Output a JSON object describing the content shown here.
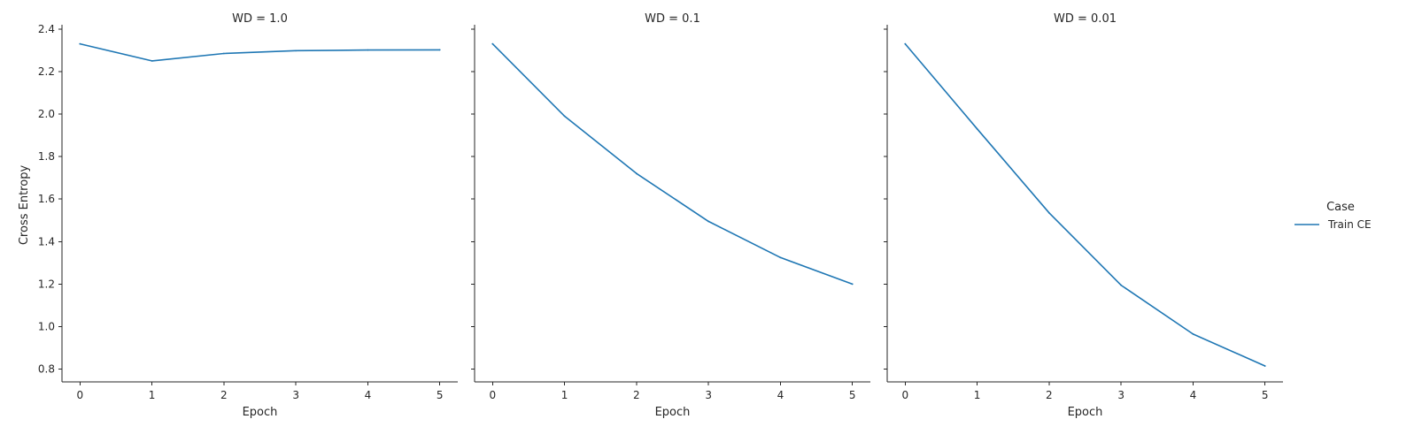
{
  "chart_data": {
    "type": "line",
    "ylabel": "Cross Entropy",
    "xlabel": "Epoch",
    "x": [
      0,
      1,
      2,
      3,
      4,
      5
    ],
    "xticks": [
      "0",
      "1",
      "2",
      "3",
      "4",
      "5"
    ],
    "yticks": [
      "0.8",
      "1.0",
      "1.2",
      "1.4",
      "1.6",
      "1.8",
      "2.0",
      "2.2",
      "2.4"
    ],
    "ylim": [
      0.74,
      2.42
    ],
    "xlim": [
      -0.25,
      5.25
    ],
    "grid": false,
    "legend": {
      "title": "Case",
      "placement": "right",
      "entries": [
        {
          "label": "Train CE",
          "color": "#1f77b4"
        }
      ]
    },
    "panels": [
      {
        "title": "WD = 1.0",
        "series": [
          {
            "name": "Train CE",
            "values": [
              2.33,
              2.25,
              2.285,
              2.298,
              2.301,
              2.302
            ]
          }
        ]
      },
      {
        "title": "WD = 0.1",
        "series": [
          {
            "name": "Train CE",
            "values": [
              2.33,
              1.99,
              1.72,
              1.495,
              1.325,
              1.2
            ]
          }
        ]
      },
      {
        "title": "WD = 0.01",
        "series": [
          {
            "name": "Train CE",
            "values": [
              2.33,
              1.93,
              1.535,
              1.195,
              0.965,
              0.815
            ]
          }
        ]
      }
    ]
  }
}
